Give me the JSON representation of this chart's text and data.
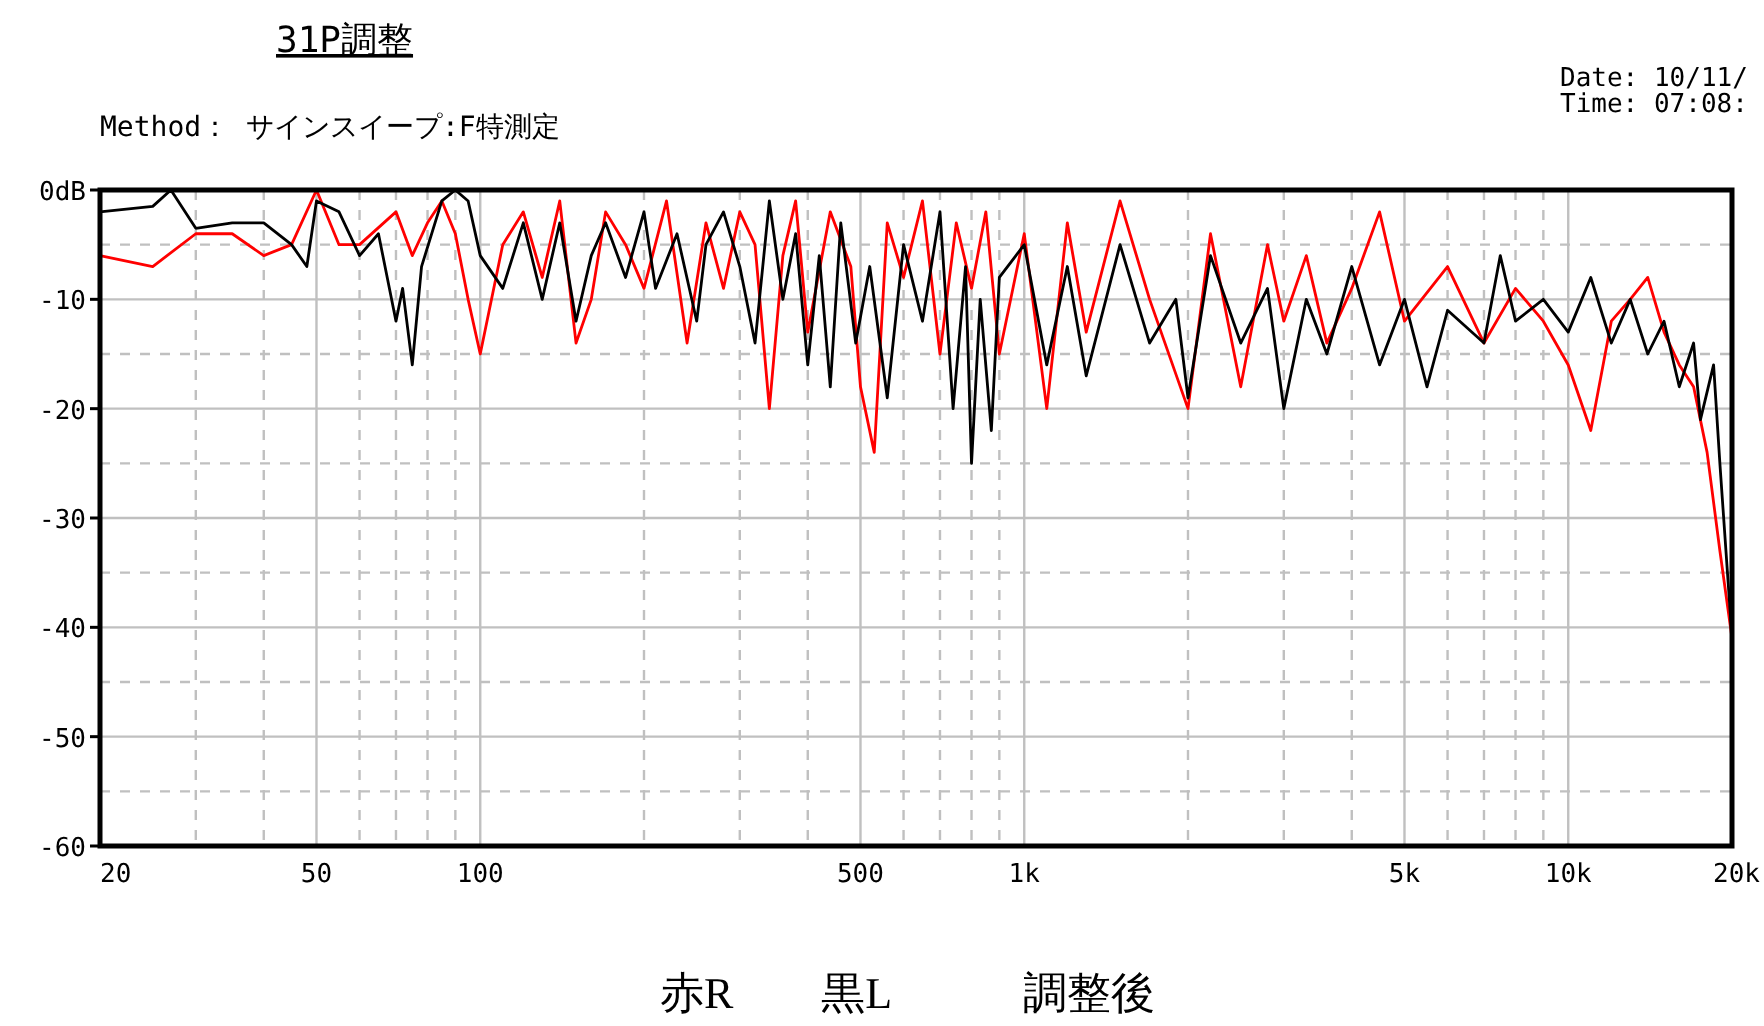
{
  "chart_data": {
    "type": "line",
    "title": "31P調整",
    "subtitle": "Method： サインスイープ:F特測定",
    "log": "x",
    "xlim": [
      20,
      20000
    ],
    "ylim": [
      -60,
      0
    ],
    "grid": true,
    "xticks": [
      20,
      {
        "value": 30,
        "label": null
      },
      {
        "value": 40,
        "label": null
      },
      50,
      {
        "value": 60,
        "label": null
      },
      {
        "value": 70,
        "label": null
      },
      {
        "value": 80,
        "label": null
      },
      {
        "value": 90,
        "label": null
      },
      100,
      {
        "value": 200,
        "label": null
      },
      {
        "value": 300,
        "label": null
      },
      {
        "value": 400,
        "label": null
      },
      500,
      {
        "value": 600,
        "label": null
      },
      {
        "value": 700,
        "label": null
      },
      {
        "value": 800,
        "label": null
      },
      {
        "value": 900,
        "label": null
      },
      {
        "value": 1000,
        "label": "1k"
      },
      {
        "value": 2000,
        "label": null
      },
      {
        "value": 3000,
        "label": null
      },
      {
        "value": 4000,
        "label": null
      },
      {
        "value": 5000,
        "label": "5k"
      },
      {
        "value": 6000,
        "label": null
      },
      {
        "value": 7000,
        "label": null
      },
      {
        "value": 8000,
        "label": null
      },
      {
        "value": 9000,
        "label": null
      },
      {
        "value": 10000,
        "label": "10k"
      },
      {
        "value": 20000,
        "label": "20k"
      }
    ],
    "yticks": [
      {
        "value": 0,
        "label": "0dB"
      },
      {
        "value": -5,
        "label": null
      },
      -10,
      {
        "value": -15,
        "label": null
      },
      -20,
      {
        "value": -25,
        "label": null
      },
      -30,
      {
        "value": -35,
        "label": null
      },
      -40,
      {
        "value": -45,
        "label": null
      },
      -50,
      {
        "value": -55,
        "label": null
      },
      -60
    ],
    "annotations": [
      "Date: 10/11/",
      "Time: 07:08:",
      "赤R　　黒L　　　調整後"
    ],
    "series": [
      {
        "color": "#ff0000",
        "x": [
          20,
          25,
          30,
          35,
          40,
          45,
          50,
          55,
          60,
          70,
          75,
          80,
          85,
          90,
          95,
          100,
          110,
          120,
          130,
          140,
          150,
          160,
          170,
          185,
          200,
          220,
          240,
          260,
          280,
          300,
          320,
          340,
          360,
          380,
          400,
          440,
          480,
          500,
          530,
          560,
          600,
          650,
          700,
          750,
          800,
          850,
          900,
          1000,
          1100,
          1200,
          1300,
          1500,
          1700,
          2000,
          2200,
          2500,
          2800,
          3000,
          3300,
          3600,
          4000,
          4500,
          5000,
          6000,
          7000,
          8000,
          9000,
          10000,
          11000,
          12000,
          13000,
          14000,
          15000,
          16000,
          17000,
          18000,
          19000,
          20000
        ],
        "values": [
          -6,
          -7,
          -4,
          -4,
          -6,
          -5,
          0,
          -5,
          -5,
          -2,
          -6,
          -3,
          -1,
          -4,
          -10,
          -15,
          -5,
          -2,
          -8,
          -1,
          -14,
          -10,
          -2,
          -5,
          -9,
          -1,
          -14,
          -3,
          -9,
          -2,
          -5,
          -20,
          -6,
          -1,
          -13,
          -2,
          -7,
          -18,
          -24,
          -3,
          -8,
          -1,
          -15,
          -3,
          -9,
          -2,
          -15,
          -4,
          -20,
          -3,
          -13,
          -1,
          -10,
          -20,
          -4,
          -18,
          -5,
          -12,
          -6,
          -14,
          -9,
          -2,
          -12,
          -7,
          -14,
          -9,
          -12,
          -16,
          -22,
          -12,
          -10,
          -8,
          -13,
          -16,
          -18,
          -24,
          -33,
          -41
        ]
      },
      {
        "color": "#000000",
        "x": [
          20,
          25,
          27,
          30,
          35,
          40,
          45,
          48,
          50,
          55,
          60,
          65,
          70,
          72,
          75,
          78,
          85,
          90,
          95,
          100,
          110,
          120,
          130,
          140,
          150,
          160,
          170,
          185,
          200,
          210,
          230,
          250,
          260,
          280,
          300,
          320,
          340,
          360,
          380,
          400,
          420,
          440,
          460,
          490,
          520,
          560,
          600,
          650,
          700,
          740,
          780,
          800,
          830,
          870,
          900,
          1000,
          1100,
          1200,
          1300,
          1500,
          1700,
          1900,
          2000,
          2200,
          2500,
          2800,
          3000,
          3300,
          3600,
          4000,
          4500,
          5000,
          5500,
          6000,
          7000,
          7500,
          8000,
          9000,
          10000,
          11000,
          12000,
          13000,
          14000,
          15000,
          16000,
          17000,
          17500,
          18500,
          19000,
          20000
        ],
        "values": [
          -2,
          -1.5,
          0,
          -3.5,
          -3,
          -3,
          -5,
          -7,
          -1,
          -2,
          -6,
          -4,
          -12,
          -9,
          -16,
          -7,
          -1,
          0,
          -1,
          -6,
          -9,
          -3,
          -10,
          -3,
          -12,
          -6,
          -3,
          -8,
          -2,
          -9,
          -4,
          -12,
          -5,
          -2,
          -7,
          -14,
          -1,
          -10,
          -4,
          -16,
          -6,
          -18,
          -3,
          -14,
          -7,
          -19,
          -5,
          -12,
          -2,
          -20,
          -7,
          -25,
          -10,
          -22,
          -8,
          -5,
          -16,
          -7,
          -17,
          -5,
          -14,
          -10,
          -19,
          -6,
          -14,
          -9,
          -20,
          -10,
          -15,
          -7,
          -16,
          -10,
          -18,
          -11,
          -14,
          -6,
          -12,
          -10,
          -13,
          -8,
          -14,
          -10,
          -15,
          -12,
          -18,
          -14,
          -21,
          -16,
          -25,
          -41
        ]
      }
    ]
  }
}
